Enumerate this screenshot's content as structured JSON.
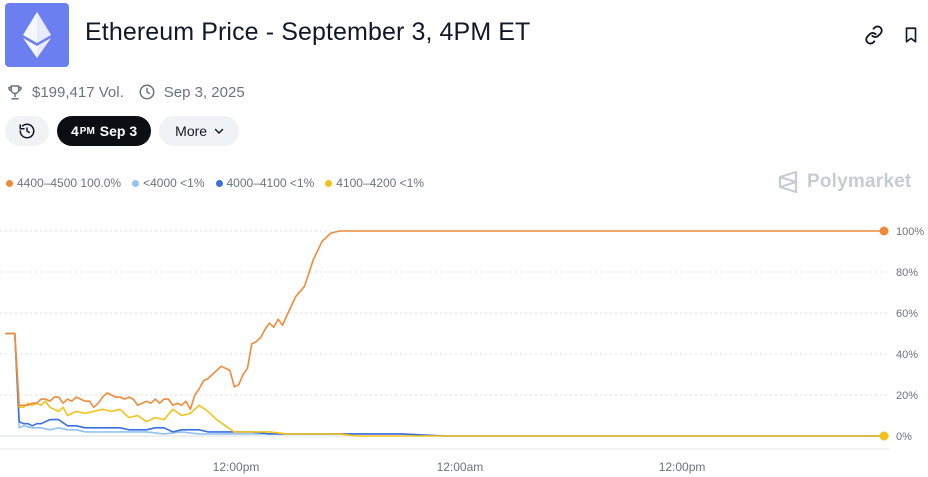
{
  "header": {
    "title": "Ethereum Price - September 3, 4PM ET",
    "logo_icon": "ethereum-icon",
    "link_icon": "link-icon",
    "bookmark_icon": "bookmark-icon"
  },
  "meta": {
    "volume": "$199,417 Vol.",
    "date": "Sep 3, 2025"
  },
  "controls": {
    "active_hour": "4",
    "active_period": "PM",
    "active_date": "Sep 3",
    "more_label": "More"
  },
  "brand": "Polymarket",
  "colors": {
    "s1": "#f08a3a",
    "s2": "#93c2f2",
    "s3": "#3b6fe0",
    "s4": "#f2c21b"
  },
  "chart_data": {
    "type": "line",
    "title": "",
    "ylim": [
      0,
      100
    ],
    "y_ticks": [
      "100%",
      "80%",
      "60%",
      "40%",
      "20%",
      "0%"
    ],
    "x_ticks": [
      "12:00pm",
      "12:00am",
      "12:00pm"
    ],
    "legend_labels": [
      "4400–4500 100.0%",
      "<4000 <1%",
      "4000–4100 <1%",
      "4100–4200 <1%"
    ],
    "series": [
      {
        "name": "4400–4500",
        "current": "100.0%",
        "color": "#f08a3a",
        "x": [
          0,
          1,
          1.5,
          2,
          2.5,
          3,
          3.5,
          4,
          4.5,
          5,
          5.5,
          6,
          6.5,
          7,
          7.5,
          8,
          8.5,
          9,
          9.5,
          10,
          10.5,
          11,
          11.5,
          12,
          12.5,
          13,
          13.5,
          14,
          14.5,
          15,
          15.5,
          16,
          16.5,
          17,
          17.5,
          18,
          18.5,
          19,
          19.5,
          20,
          20.5,
          21,
          21.5,
          22,
          22.5,
          23,
          23.5,
          24,
          24.5,
          25,
          25.5,
          26,
          26.5,
          27,
          27.5,
          28,
          28.5,
          29,
          29.5,
          30,
          30.5,
          31,
          31.5,
          32,
          33,
          34,
          35,
          36,
          37,
          38,
          39,
          40,
          41,
          42,
          43,
          44,
          45,
          46,
          47,
          48,
          49,
          50,
          51,
          52,
          53,
          54,
          55,
          56,
          57,
          58,
          59,
          60,
          61,
          62,
          63,
          64,
          65,
          66,
          67,
          68,
          69,
          70,
          71,
          72,
          73,
          74,
          75,
          76,
          77,
          78,
          79,
          80,
          81,
          82,
          83,
          84,
          85,
          86,
          87,
          88,
          89,
          90,
          91,
          92,
          93,
          94,
          95,
          96,
          97,
          98,
          99,
          100
        ],
        "values": [
          50,
          50,
          15,
          15,
          15,
          16,
          16,
          18,
          18,
          17,
          19,
          19,
          16,
          18,
          17,
          19,
          18,
          17,
          17,
          14,
          16,
          19,
          21,
          20,
          19,
          19,
          18,
          19,
          18,
          15,
          16,
          17,
          16,
          18,
          16,
          18,
          18,
          15,
          16,
          15,
          17,
          13,
          20,
          23,
          27,
          28,
          30,
          32,
          34,
          33,
          32,
          24,
          25,
          30,
          33,
          45,
          46,
          48,
          52,
          55,
          53,
          57,
          54,
          59,
          68,
          73,
          86,
          95,
          99,
          100,
          100,
          100,
          100,
          100,
          100,
          100,
          100,
          100,
          100,
          100,
          100,
          100,
          100,
          100,
          100,
          100,
          100,
          100,
          100,
          100,
          100,
          100,
          100,
          100,
          100,
          100,
          100,
          100,
          100,
          100,
          100,
          100,
          100,
          100,
          100,
          100,
          100,
          100,
          100,
          100,
          100,
          100,
          100,
          100,
          100,
          100,
          100,
          100,
          100,
          100,
          100,
          100,
          100,
          100,
          100,
          100,
          100,
          100,
          100,
          100,
          100,
          100
        ]
      },
      {
        "name": "<4000",
        "current": "<1%",
        "color": "#93c2f2",
        "x": [
          0,
          1,
          1.5,
          2,
          3,
          4,
          5,
          6,
          7,
          8,
          9,
          10,
          12,
          14,
          16,
          18,
          20,
          22,
          24,
          26,
          28,
          30,
          32,
          35,
          40,
          45,
          50,
          55,
          60,
          70,
          80,
          90,
          100
        ],
        "values": [
          50,
          50,
          4,
          5,
          4,
          4,
          3,
          4,
          3,
          3,
          2,
          2,
          2,
          2,
          2,
          1,
          2,
          1,
          1,
          1,
          1,
          1,
          1,
          1,
          1,
          1,
          0,
          0,
          0,
          0,
          0,
          0,
          0
        ]
      },
      {
        "name": "4000–4100",
        "current": "<1%",
        "color": "#3b6fe0",
        "x": [
          0,
          1,
          1.5,
          2,
          2.5,
          3,
          3.5,
          4,
          5,
          6,
          7,
          8,
          9,
          10,
          11,
          12,
          13,
          14,
          15,
          16,
          17,
          18,
          19,
          20,
          21,
          22,
          23,
          24,
          25,
          26,
          28,
          30,
          32,
          35,
          38,
          40,
          45,
          50,
          55,
          60,
          70,
          80,
          90,
          100
        ],
        "values": [
          50,
          50,
          7,
          6,
          6,
          5,
          6,
          6,
          8,
          8,
          5,
          5,
          4,
          4,
          4,
          4,
          4,
          3,
          3,
          3,
          4,
          4,
          2,
          3,
          3,
          3,
          2,
          2,
          2,
          2,
          2,
          1,
          1,
          1,
          1,
          1,
          1,
          0,
          0,
          0,
          0,
          0,
          0,
          0
        ]
      },
      {
        "name": "4100–4200",
        "current": "<1%",
        "color": "#f2c21b",
        "x": [
          0,
          1,
          1.5,
          2,
          2.5,
          3,
          3.5,
          4,
          4.5,
          5,
          5.5,
          6,
          6.5,
          7,
          8,
          9,
          10,
          11,
          12,
          13,
          14,
          15,
          16,
          17,
          18,
          19,
          20,
          21,
          22,
          23,
          24,
          25,
          26,
          27,
          28,
          30,
          32,
          35,
          38,
          40,
          45,
          50,
          55,
          60,
          70,
          80,
          90,
          100
        ],
        "values": [
          50,
          50,
          14,
          14,
          16,
          15,
          16,
          15,
          17,
          14,
          13,
          12,
          14,
          10,
          12,
          11,
          12,
          13,
          12,
          13,
          9,
          10,
          7,
          9,
          8,
          13,
          10,
          11,
          15,
          12,
          8,
          5,
          2,
          2,
          2,
          2,
          1,
          1,
          1,
          0,
          0,
          0,
          0,
          0,
          0,
          0,
          0,
          0
        ]
      }
    ]
  }
}
